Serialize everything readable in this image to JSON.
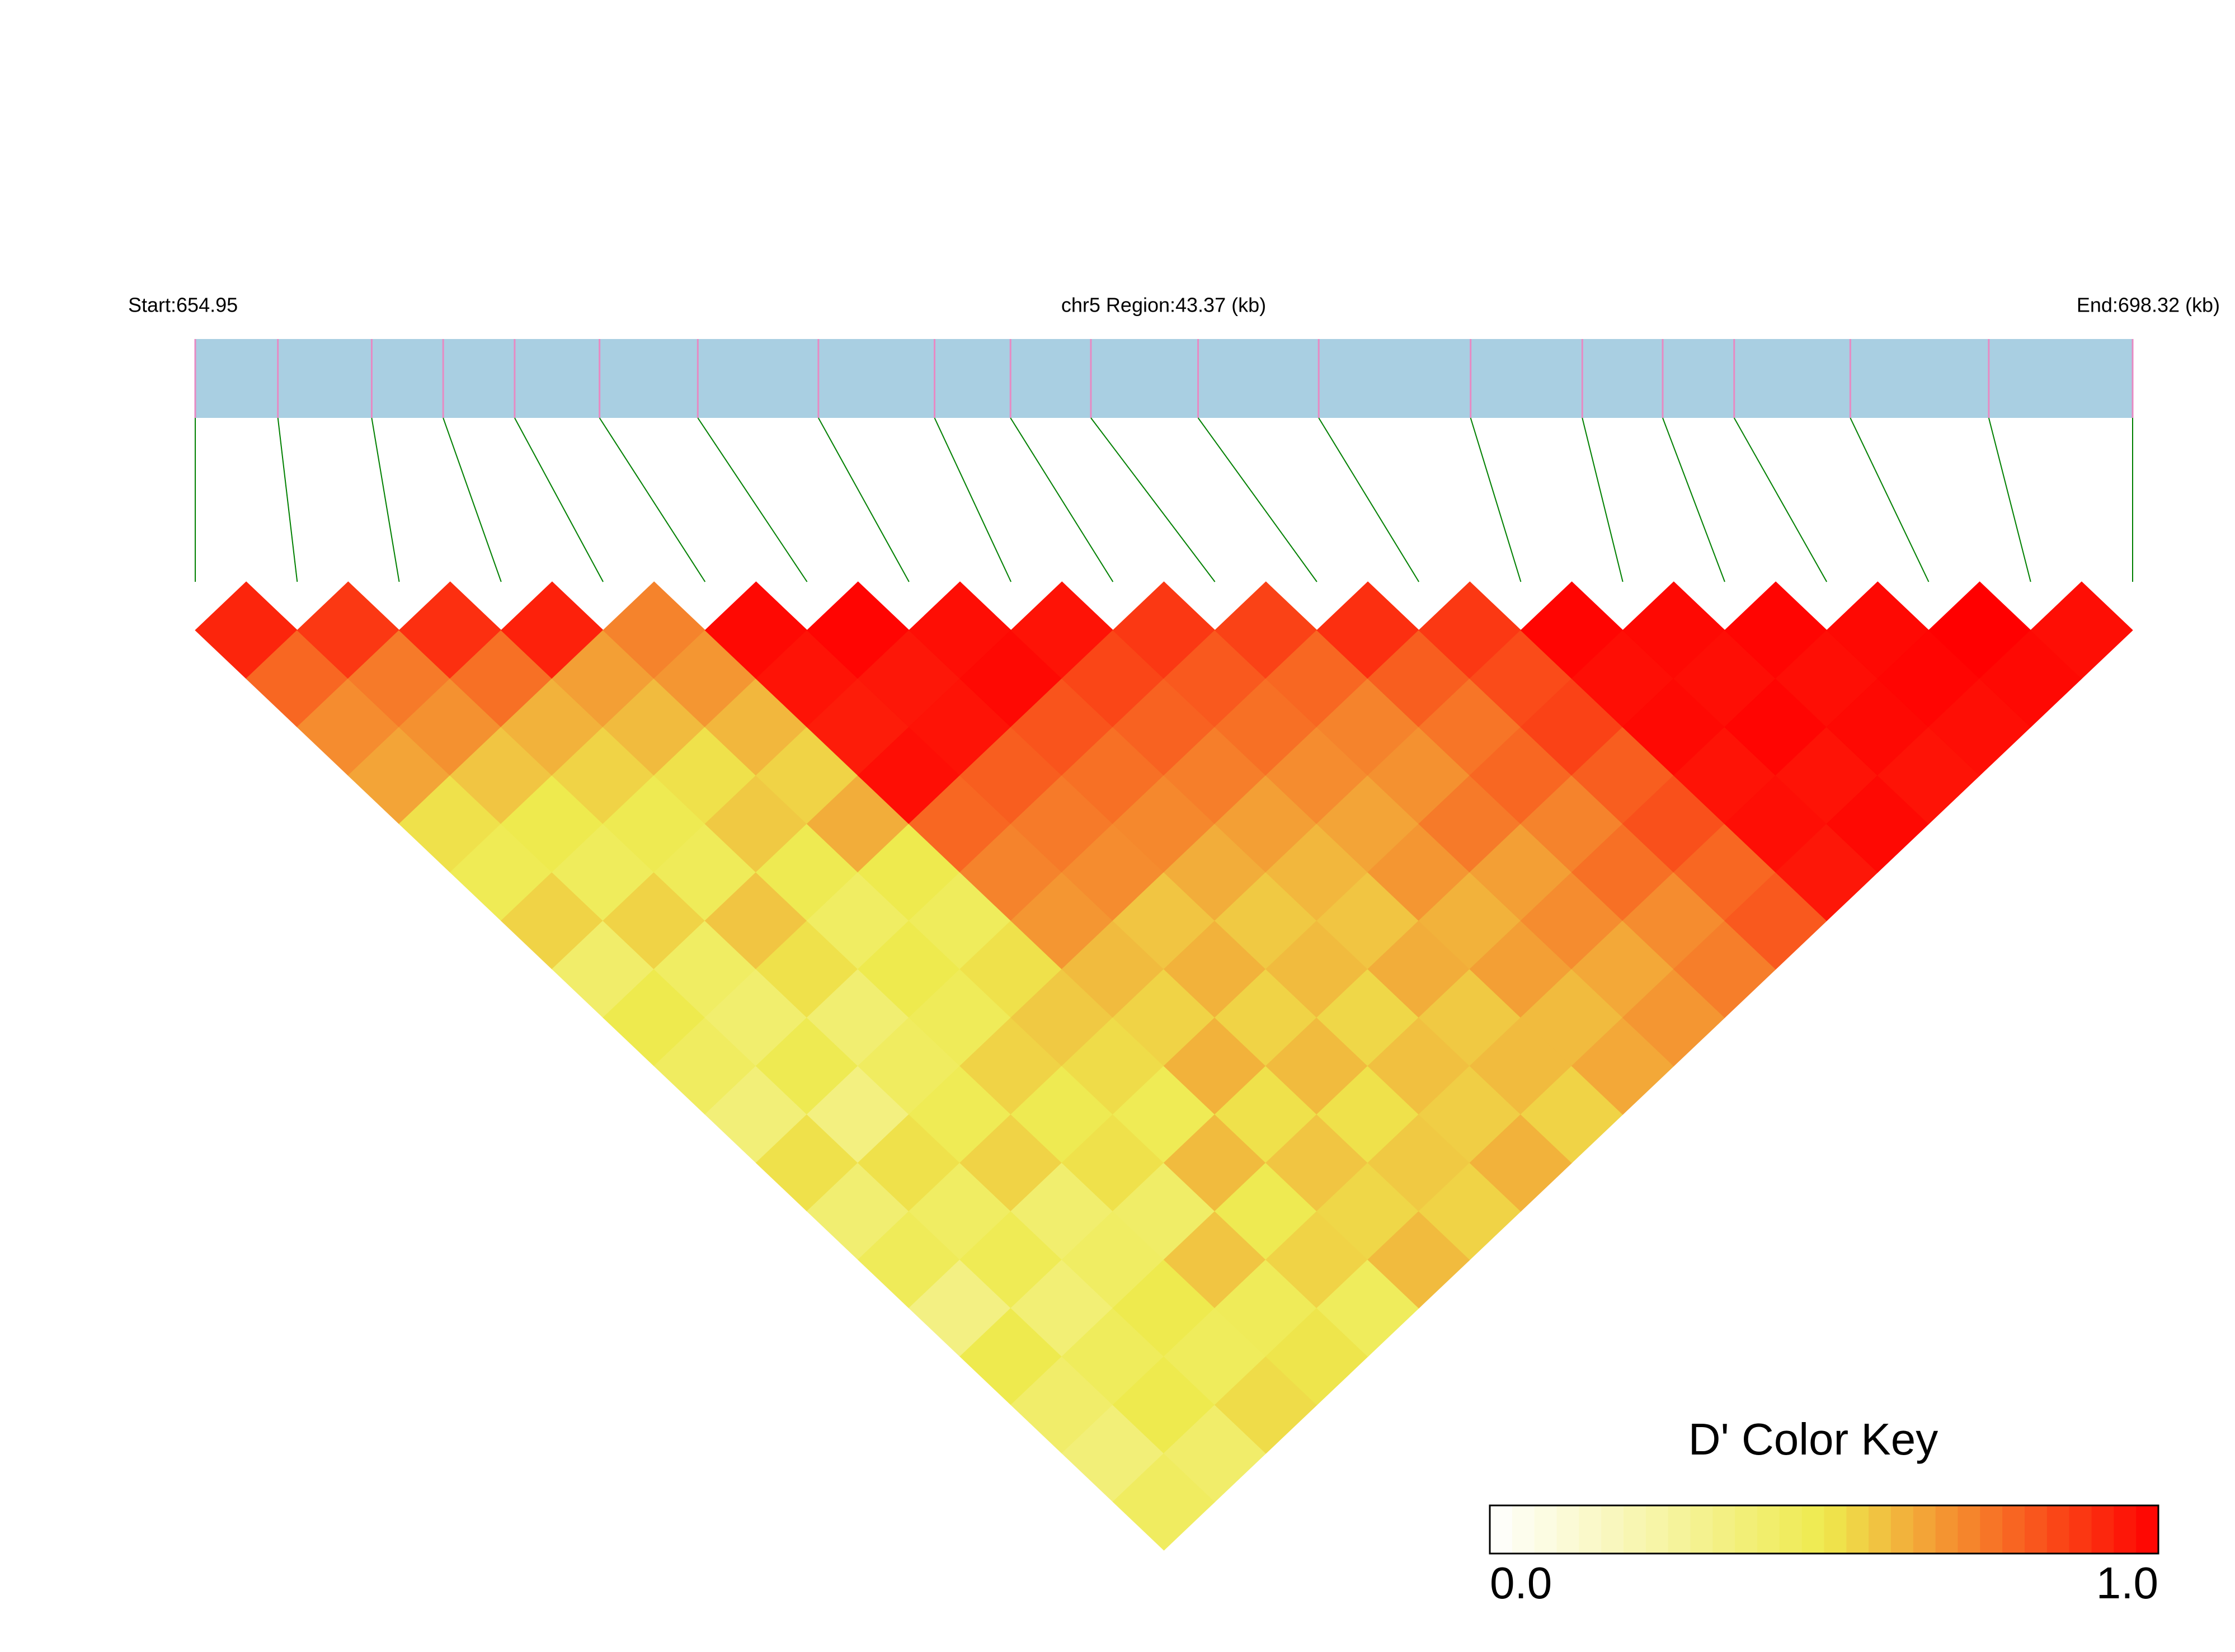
{
  "chart_data": {
    "type": "ld-heatmap",
    "start_label": "Start:654.95",
    "region_label": "chr5 Region:43.37 (kb)",
    "end_label": "End:698.32 (kb)",
    "xlim": [
      654.95,
      698.32
    ],
    "positions": [
      654.95,
      656.8,
      658.9,
      660.5,
      662.1,
      664.0,
      666.2,
      668.9,
      671.5,
      673.2,
      675.0,
      677.4,
      680.1,
      683.5,
      686.0,
      687.8,
      689.4,
      692.0,
      695.1,
      698.32
    ],
    "dprime": [
      [
        0.92,
        0.78,
        0.7,
        0.65,
        0.52,
        0.48,
        0.55,
        0.42,
        0.5,
        0.45,
        0.38,
        0.52,
        0.4,
        0.47,
        0.35,
        0.5,
        0.42,
        0.38,
        0.45
      ],
      [
        0.88,
        0.74,
        0.69,
        0.58,
        0.5,
        0.46,
        0.55,
        0.44,
        0.41,
        0.49,
        0.36,
        0.52,
        0.44,
        0.48,
        0.39,
        0.46,
        0.5,
        0.42
      ],
      [
        0.9,
        0.76,
        0.62,
        0.55,
        0.49,
        0.47,
        0.58,
        0.52,
        0.4,
        0.45,
        0.48,
        0.55,
        0.41,
        0.44,
        0.5,
        0.46,
        0.53
      ],
      [
        0.93,
        0.66,
        0.6,
        0.52,
        0.57,
        0.49,
        0.44,
        0.5,
        0.47,
        0.55,
        0.49,
        0.52,
        0.43,
        0.58,
        0.47,
        0.51
      ],
      [
        0.72,
        0.68,
        0.61,
        0.55,
        0.63,
        0.5,
        0.46,
        0.52,
        0.57,
        0.53,
        0.48,
        0.6,
        0.49,
        0.55,
        0.46
      ],
      [
        0.98,
        0.96,
        0.94,
        0.97,
        0.78,
        0.72,
        0.68,
        0.6,
        0.55,
        0.62,
        0.52,
        0.58,
        0.54,
        0.6
      ],
      [
        0.99,
        0.95,
        0.96,
        0.8,
        0.74,
        0.7,
        0.58,
        0.62,
        0.55,
        0.6,
        0.52,
        0.57,
        0.55
      ],
      [
        0.97,
        0.98,
        0.82,
        0.76,
        0.71,
        0.63,
        0.57,
        0.6,
        0.54,
        0.59,
        0.56,
        0.62
      ],
      [
        0.96,
        0.85,
        0.79,
        0.73,
        0.66,
        0.61,
        0.58,
        0.63,
        0.57,
        0.6,
        0.55
      ],
      [
        0.88,
        0.81,
        0.76,
        0.7,
        0.65,
        0.68,
        0.62,
        0.66,
        0.6,
        0.64
      ],
      [
        0.86,
        0.78,
        0.72,
        0.69,
        0.74,
        0.66,
        0.7,
        0.64,
        0.68
      ],
      [
        0.9,
        0.8,
        0.75,
        0.78,
        0.72,
        0.76,
        0.7,
        0.73
      ],
      [
        0.88,
        0.84,
        0.86,
        0.8,
        0.83,
        0.78,
        0.81
      ],
      [
        0.99,
        0.97,
        0.98,
        0.96,
        0.97,
        0.95
      ],
      [
        0.98,
        0.97,
        0.99,
        0.96,
        0.98
      ],
      [
        0.99,
        0.97,
        0.98,
        0.96
      ],
      [
        0.98,
        0.99,
        0.97
      ],
      [
        1.0,
        0.98
      ],
      [
        0.97
      ]
    ],
    "track_color": "#a9cfe2",
    "snp_color": "#e78ac3",
    "link_color": "#008000",
    "colors": [
      "#ffffff",
      "#eeea4e",
      "#ff0000"
    ],
    "key": {
      "title": "D' Color Key",
      "ticks": [
        {
          "value": 0,
          "label": "0.0"
        },
        {
          "value": 1,
          "label": "1.0"
        }
      ]
    }
  }
}
